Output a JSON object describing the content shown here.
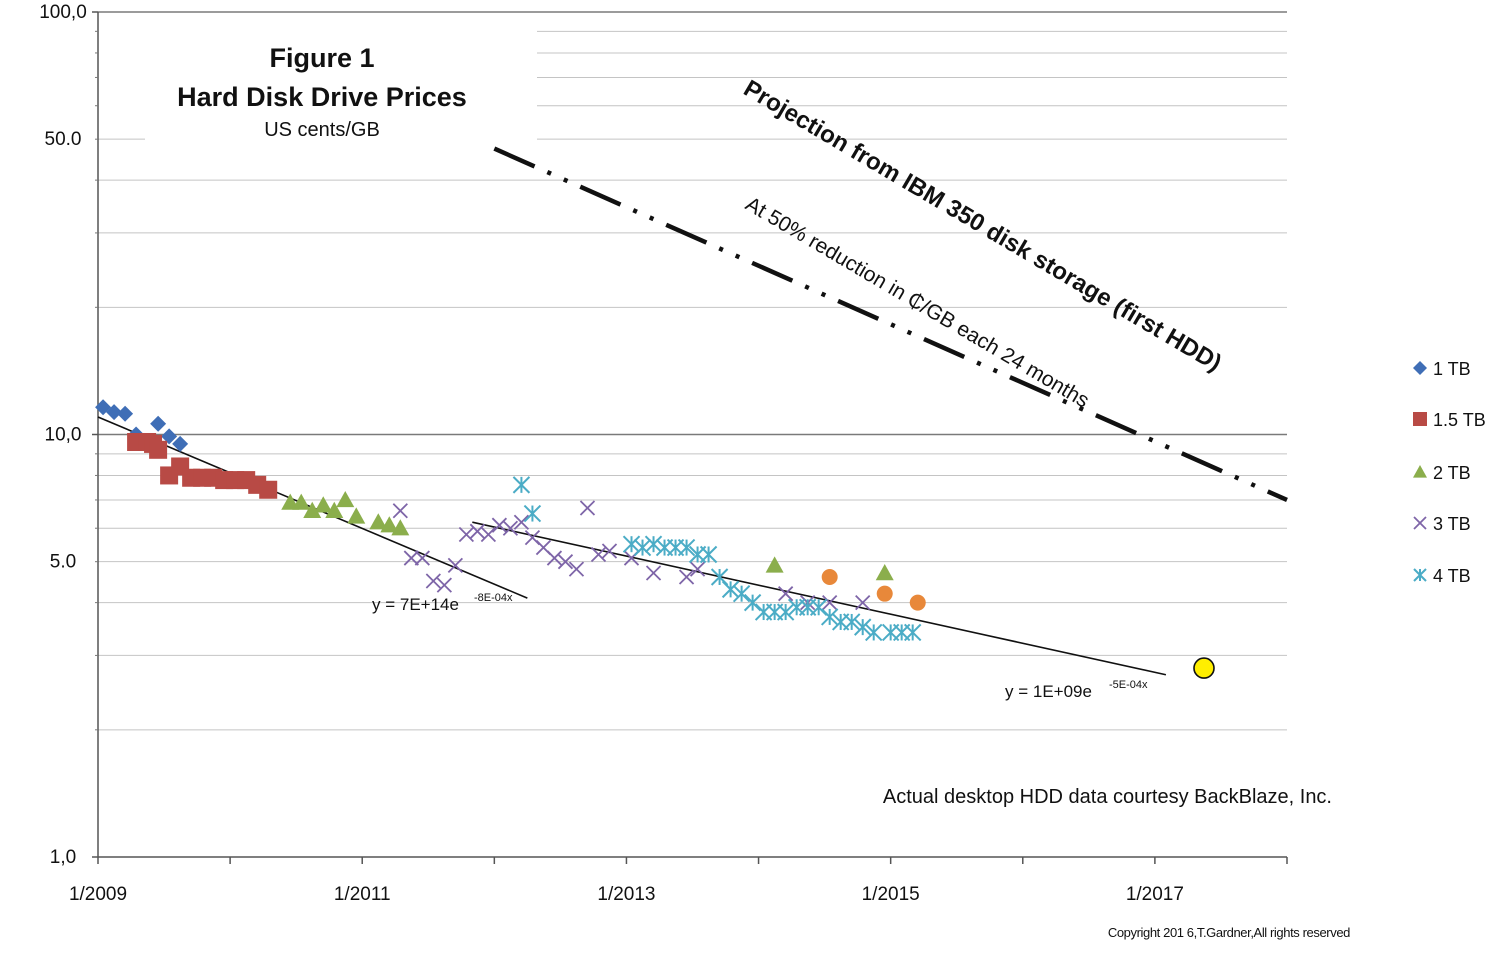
{
  "chart_data": {
    "type": "scatter",
    "title": "Figure 1",
    "subtitle": "Hard Disk Drive Prices",
    "units": "US cents/GB",
    "ylabel": "",
    "xlabel": "",
    "yscale": "log",
    "ylim": [
      1,
      100
    ],
    "xlim": [
      "2009-01",
      "2018-01"
    ],
    "yticks": [
      "1,0",
      "5.0",
      "10,0",
      "50.0",
      "100,0"
    ],
    "xticks": [
      "1/2009",
      "1/2011",
      "1/2013",
      "1/2015",
      "1/2017"
    ],
    "grid": true,
    "legend_position": "right",
    "series": [
      {
        "name": "1 TB",
        "marker": "diamond",
        "color": "#3F6EB6",
        "points": [
          [
            "2009-01-15",
            11.6
          ],
          [
            "2009-02-15",
            11.3
          ],
          [
            "2009-03-15",
            11.2
          ],
          [
            "2009-04-15",
            10.0
          ],
          [
            "2009-06-15",
            10.6
          ],
          [
            "2009-07-15",
            9.9
          ],
          [
            "2009-08-15",
            9.5
          ]
        ]
      },
      {
        "name": "1.5 TB",
        "marker": "square",
        "color": "#B84A45",
        "points": [
          [
            "2009-04-15",
            9.6
          ],
          [
            "2009-05-15",
            9.6
          ],
          [
            "2009-06-01",
            9.5
          ],
          [
            "2009-06-15",
            9.2
          ],
          [
            "2009-07-15",
            8.0
          ],
          [
            "2009-08-15",
            8.4
          ],
          [
            "2009-09-15",
            7.9
          ],
          [
            "2009-10-15",
            7.9
          ],
          [
            "2009-11-15",
            7.9
          ],
          [
            "2009-12-15",
            7.8
          ],
          [
            "2010-01-15",
            7.8
          ],
          [
            "2010-02-15",
            7.8
          ],
          [
            "2010-03-15",
            7.6
          ],
          [
            "2010-04-15",
            7.4
          ]
        ]
      },
      {
        "name": "2 TB",
        "marker": "triangle",
        "color": "#8BAE4C",
        "points": [
          [
            "2010-06-15",
            6.9
          ],
          [
            "2010-07-15",
            6.9
          ],
          [
            "2010-08-15",
            6.6
          ],
          [
            "2010-09-15",
            6.8
          ],
          [
            "2010-10-15",
            6.6
          ],
          [
            "2010-11-15",
            7.0
          ],
          [
            "2010-12-15",
            6.4
          ],
          [
            "2011-02-15",
            6.2
          ],
          [
            "2011-03-15",
            6.1
          ],
          [
            "2011-04-15",
            6.0
          ],
          [
            "2014-02-15",
            4.9
          ],
          [
            "2014-12-15",
            4.7
          ]
        ]
      },
      {
        "name": "3 TB",
        "marker": "x",
        "color": "#7E65A8",
        "points": [
          [
            "2011-04-15",
            6.6
          ],
          [
            "2011-05-15",
            5.1
          ],
          [
            "2011-06-15",
            5.1
          ],
          [
            "2011-07-15",
            4.5
          ],
          [
            "2011-08-15",
            4.4
          ],
          [
            "2011-09-15",
            4.9
          ],
          [
            "2011-10-15",
            5.8
          ],
          [
            "2011-11-15",
            5.9
          ],
          [
            "2011-12-15",
            5.8
          ],
          [
            "2012-01-15",
            6.1
          ],
          [
            "2012-02-15",
            6.0
          ],
          [
            "2012-03-15",
            6.2
          ],
          [
            "2012-04-15",
            5.7
          ],
          [
            "2012-05-15",
            5.4
          ],
          [
            "2012-06-15",
            5.1
          ],
          [
            "2012-07-15",
            5.0
          ],
          [
            "2012-08-15",
            4.8
          ],
          [
            "2012-09-15",
            6.7
          ],
          [
            "2012-10-15",
            5.2
          ],
          [
            "2012-11-15",
            5.3
          ],
          [
            "2013-01-15",
            5.1
          ],
          [
            "2013-03-15",
            4.7
          ],
          [
            "2013-06-15",
            4.6
          ],
          [
            "2013-07-15",
            4.8
          ],
          [
            "2014-03-15",
            4.2
          ],
          [
            "2014-05-15",
            4.0
          ],
          [
            "2014-07-15",
            4.0
          ],
          [
            "2014-10-15",
            4.0
          ]
        ]
      },
      {
        "name": "4 TB",
        "marker": "asterisk",
        "color": "#4BACC6",
        "points": [
          [
            "2012-03-15",
            7.6
          ],
          [
            "2012-04-15",
            6.5
          ],
          [
            "2013-01-15",
            5.5
          ],
          [
            "2013-02-15",
            5.4
          ],
          [
            "2013-03-15",
            5.5
          ],
          [
            "2013-04-15",
            5.4
          ],
          [
            "2013-05-15",
            5.4
          ],
          [
            "2013-06-15",
            5.4
          ],
          [
            "2013-07-15",
            5.2
          ],
          [
            "2013-08-15",
            5.2
          ],
          [
            "2013-09-15",
            4.6
          ],
          [
            "2013-10-15",
            4.3
          ],
          [
            "2013-11-15",
            4.2
          ],
          [
            "2013-12-15",
            4.0
          ],
          [
            "2014-01-15",
            3.8
          ],
          [
            "2014-02-15",
            3.8
          ],
          [
            "2014-03-15",
            3.8
          ],
          [
            "2014-04-15",
            3.9
          ],
          [
            "2014-05-15",
            3.9
          ],
          [
            "2014-06-15",
            3.9
          ],
          [
            "2014-07-15",
            3.7
          ],
          [
            "2014-08-15",
            3.6
          ],
          [
            "2014-09-15",
            3.6
          ],
          [
            "2014-10-15",
            3.5
          ],
          [
            "2014-11-15",
            3.4
          ],
          [
            "2015-01-01",
            3.4
          ],
          [
            "2015-02-01",
            3.4
          ],
          [
            "2015-03-01",
            3.4
          ]
        ]
      },
      {
        "name": "",
        "marker": "circle",
        "color": "#E8883A",
        "points": [
          [
            "2014-07-15",
            4.6
          ],
          [
            "2014-12-15",
            4.2
          ],
          [
            "2015-03-15",
            4.0
          ]
        ]
      },
      {
        "name": "",
        "marker": "circle-large",
        "color": "#FFEE00",
        "points": [
          [
            "2017-05-15",
            2.8
          ]
        ]
      }
    ],
    "trendlines": [
      {
        "label": "y = 7E+14e",
        "exponent": "-8E-04x",
        "from": [
          "2009-01-01",
          11.0
        ],
        "to": [
          "2012-04-01",
          4.1
        ]
      },
      {
        "label": "y = 1E+09e",
        "exponent": "-5E-04x",
        "from": [
          "2011-11-01",
          6.2
        ],
        "to": [
          "2017-02-01",
          2.7
        ]
      }
    ],
    "projection": {
      "title": "Projection from IBM 350 disk storage (first HDD)",
      "subtitle": "At 50% reduction in ₵/GB each 24 months",
      "from": [
        "2012-01-01",
        47.5
      ],
      "to": [
        "2018-01-01",
        7.0
      ]
    },
    "annotations": [
      "Actual desktop HDD data courtesy BackBlaze, Inc."
    ],
    "copyright": "Copyright 201 6,T.Gardner,All rights reserved"
  }
}
